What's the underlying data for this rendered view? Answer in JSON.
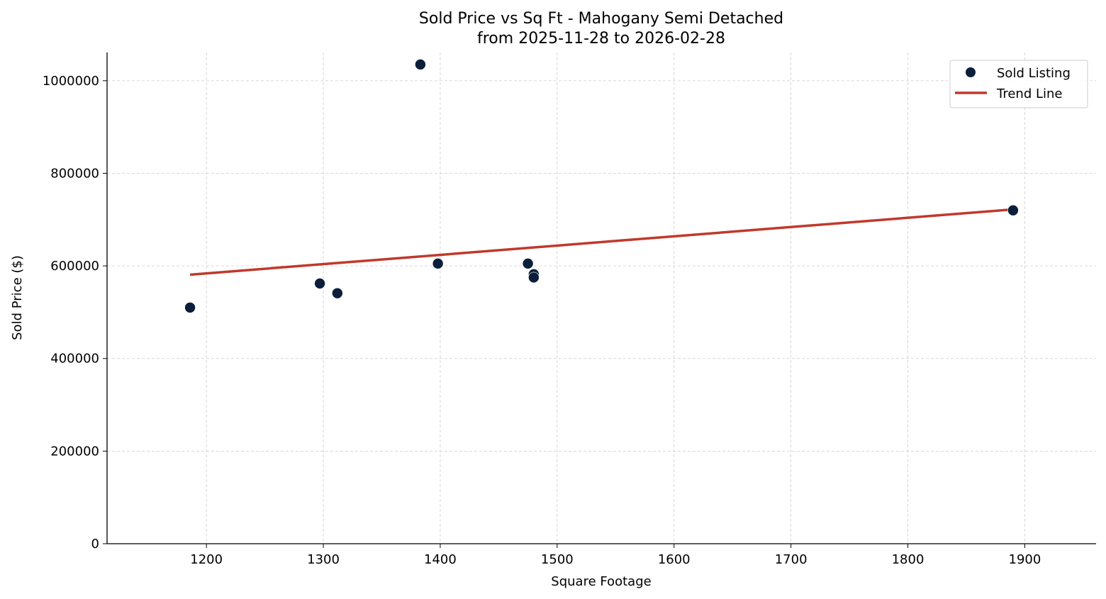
{
  "chart_data": {
    "type": "scatter",
    "title": "Sold Price vs Sq Ft - Mahogany Semi Detached",
    "subtitle": "from 2025-11-28 to 2026-02-28",
    "xlabel": "Square Footage",
    "ylabel": "Sold Price ($)",
    "xlim": [
      1115,
      1961
    ],
    "ylim": [
      0,
      1061000
    ],
    "xticks": [
      1200,
      1300,
      1400,
      1500,
      1600,
      1700,
      1800,
      1900
    ],
    "yticks": [
      0,
      200000,
      400000,
      600000,
      800000,
      1000000
    ],
    "grid": true,
    "legend_position": "top-right",
    "series": [
      {
        "name": "Sold Listing",
        "kind": "scatter",
        "color": "#0b1f3a",
        "points": [
          {
            "x": 1186,
            "y": 510000
          },
          {
            "x": 1297,
            "y": 562000
          },
          {
            "x": 1312,
            "y": 541000
          },
          {
            "x": 1383,
            "y": 1035000
          },
          {
            "x": 1398,
            "y": 605000
          },
          {
            "x": 1475,
            "y": 605000
          },
          {
            "x": 1480,
            "y": 582000
          },
          {
            "x": 1480,
            "y": 575000
          },
          {
            "x": 1890,
            "y": 720000
          }
        ]
      },
      {
        "name": "Trend Line",
        "kind": "line",
        "color": "#c0392b",
        "points": [
          {
            "x": 1186,
            "y": 581000
          },
          {
            "x": 1890,
            "y": 722000
          }
        ]
      }
    ]
  }
}
